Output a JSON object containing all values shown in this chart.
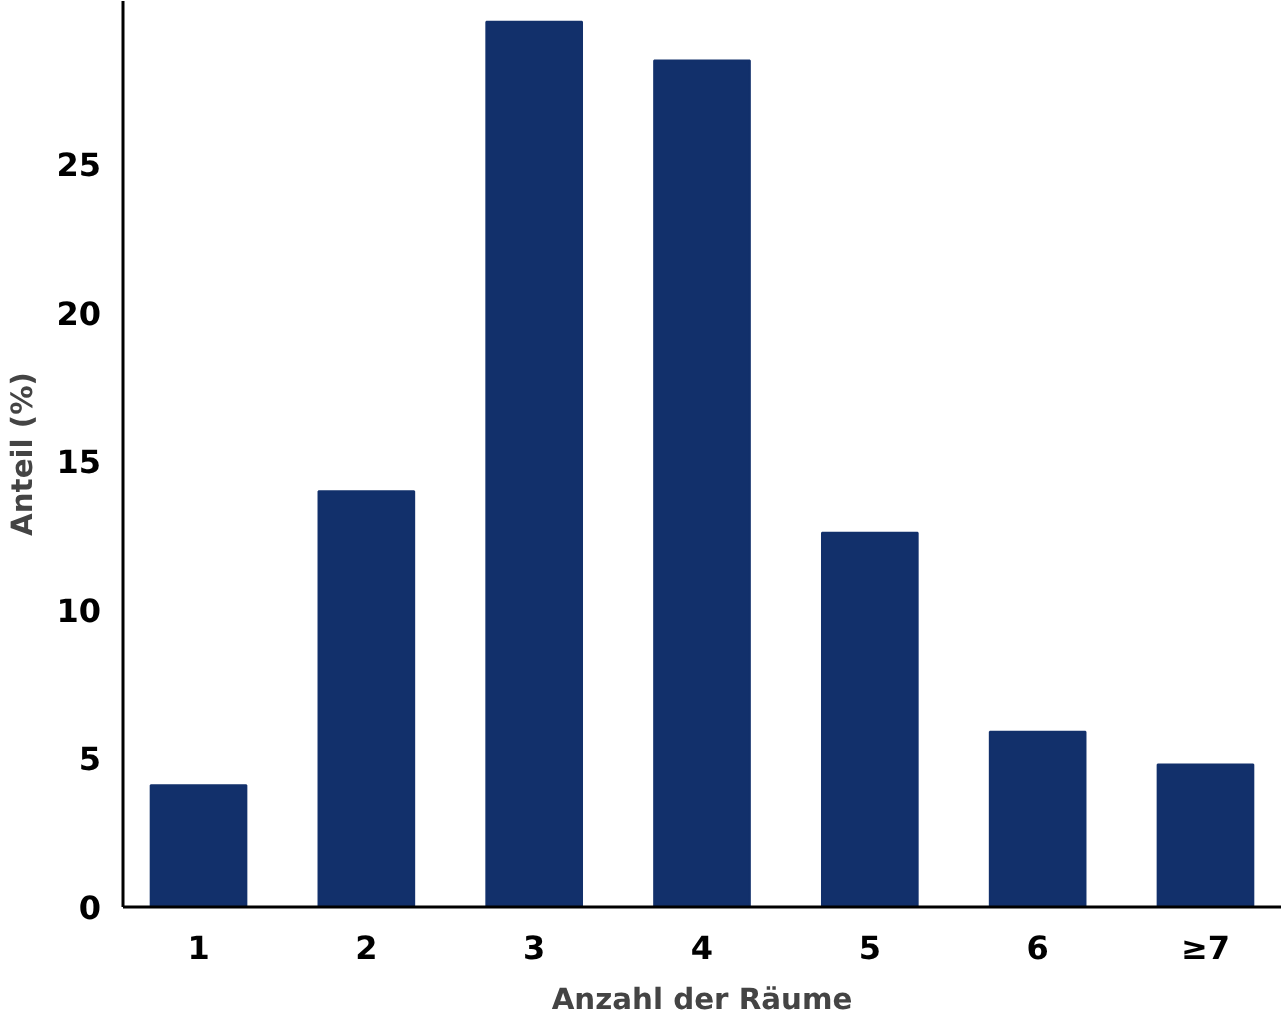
{
  "chart_data": {
    "type": "bar",
    "xlabel": "Anzahl der Räume",
    "ylabel": "Anteil (%)",
    "categories": [
      "1",
      "2",
      "3",
      "4",
      "5",
      "6",
      "≥7"
    ],
    "values": [
      4.1,
      14.0,
      29.8,
      28.5,
      12.6,
      5.9,
      4.8
    ],
    "color": "#12306b",
    "ylim": [
      0,
      30.5
    ],
    "yticks": [
      0,
      5,
      10,
      15,
      20,
      25
    ],
    "grid": false
  }
}
